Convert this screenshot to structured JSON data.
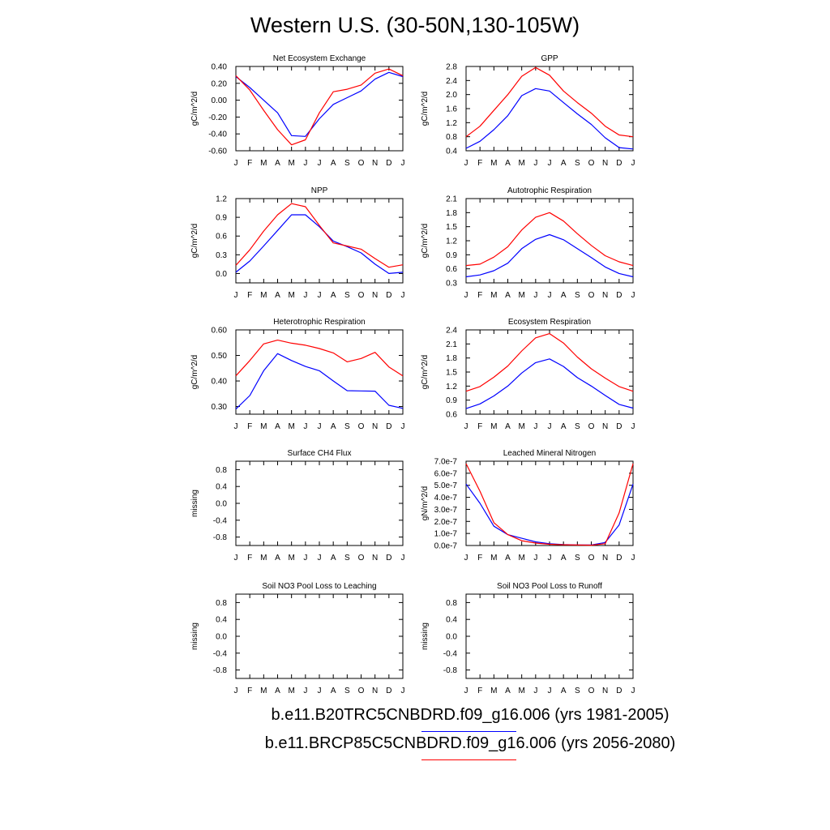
{
  "title": "Western U.S. (30-50N,130-105W)",
  "colors": {
    "series_1": "#0000ff",
    "series_2": "#ff0000",
    "axis": "#000000"
  },
  "legend": [
    {
      "label": "b.e11.B20TRC5CNBDRD.f09_g16.006 (yrs 1981-2005)",
      "color": "#0000ff"
    },
    {
      "label": "b.e11.BRCP85C5CNBDRD.f09_g16.006 (yrs 2056-2080)",
      "color": "#ff0000"
    }
  ],
  "chart_data": [
    {
      "type": "line",
      "title": "Net Ecosystem Exchange",
      "ylabel": "gC/m^2/d",
      "categories": [
        "J",
        "F",
        "M",
        "A",
        "M",
        "J",
        "J",
        "A",
        "S",
        "O",
        "N",
        "D",
        "J"
      ],
      "ylim": [
        -0.6,
        0.4
      ],
      "yticks": [
        "0.40",
        "0.20",
        "0.00",
        "-0.20",
        "-0.40",
        "-0.60"
      ],
      "ytick_values": [
        0.4,
        0.2,
        0.0,
        -0.2,
        -0.4,
        -0.6
      ],
      "series": [
        {
          "color": "#0000ff",
          "values": [
            0.28,
            0.15,
            0.0,
            -0.15,
            -0.42,
            -0.43,
            -0.22,
            -0.05,
            0.03,
            0.11,
            0.25,
            0.33,
            0.28
          ]
        },
        {
          "color": "#ff0000",
          "values": [
            0.29,
            0.12,
            -0.12,
            -0.35,
            -0.53,
            -0.47,
            -0.15,
            0.1,
            0.13,
            0.18,
            0.32,
            0.37,
            0.29
          ]
        }
      ]
    },
    {
      "type": "line",
      "title": "GPP",
      "ylabel": "gC/m^2/d",
      "categories": [
        "J",
        "F",
        "M",
        "A",
        "M",
        "J",
        "J",
        "A",
        "S",
        "O",
        "N",
        "D",
        "J"
      ],
      "ylim": [
        0.4,
        2.8
      ],
      "yticks": [
        "2.8",
        "2.4",
        "2.0",
        "1.6",
        "1.2",
        "0.8",
        "0.4"
      ],
      "ytick_values": [
        2.8,
        2.4,
        2.0,
        1.6,
        1.2,
        0.8,
        0.4
      ],
      "series": [
        {
          "color": "#0000ff",
          "values": [
            0.47,
            0.67,
            1.0,
            1.4,
            1.97,
            2.17,
            2.1,
            1.77,
            1.45,
            1.15,
            0.77,
            0.49,
            0.45
          ]
        },
        {
          "color": "#ff0000",
          "values": [
            0.8,
            1.1,
            1.55,
            2.0,
            2.52,
            2.77,
            2.55,
            2.1,
            1.77,
            1.47,
            1.1,
            0.85,
            0.8
          ]
        }
      ]
    },
    {
      "type": "line",
      "title": "NPP",
      "ylabel": "gC/m^2/d",
      "categories": [
        "J",
        "F",
        "M",
        "A",
        "M",
        "J",
        "J",
        "A",
        "S",
        "O",
        "N",
        "D",
        "J"
      ],
      "ylim": [
        -0.15,
        1.2
      ],
      "yticks": [
        "1.2",
        "0.9",
        "0.6",
        "0.3",
        "0.0"
      ],
      "ytick_values": [
        1.2,
        0.9,
        0.6,
        0.3,
        0.0
      ],
      "series": [
        {
          "color": "#0000ff",
          "values": [
            0.02,
            0.2,
            0.44,
            0.69,
            0.94,
            0.94,
            0.75,
            0.52,
            0.43,
            0.33,
            0.15,
            0.0,
            0.02
          ]
        },
        {
          "color": "#ff0000",
          "values": [
            0.13,
            0.38,
            0.68,
            0.94,
            1.12,
            1.07,
            0.77,
            0.49,
            0.44,
            0.39,
            0.24,
            0.1,
            0.14
          ]
        }
      ]
    },
    {
      "type": "line",
      "title": "Autotrophic Respiration",
      "ylabel": "gC/m^2/d",
      "categories": [
        "J",
        "F",
        "M",
        "A",
        "M",
        "J",
        "J",
        "A",
        "S",
        "O",
        "N",
        "D",
        "J"
      ],
      "ylim": [
        0.3,
        2.1
      ],
      "yticks": [
        "2.1",
        "1.8",
        "1.5",
        "1.2",
        "0.9",
        "0.6",
        "0.3"
      ],
      "ytick_values": [
        2.1,
        1.8,
        1.5,
        1.2,
        0.9,
        0.6,
        0.3
      ],
      "series": [
        {
          "color": "#0000ff",
          "values": [
            0.43,
            0.47,
            0.56,
            0.72,
            1.03,
            1.23,
            1.33,
            1.22,
            1.03,
            0.84,
            0.64,
            0.5,
            0.43
          ]
        },
        {
          "color": "#ff0000",
          "values": [
            0.67,
            0.7,
            0.85,
            1.07,
            1.43,
            1.7,
            1.8,
            1.62,
            1.35,
            1.1,
            0.88,
            0.75,
            0.67
          ]
        }
      ]
    },
    {
      "type": "line",
      "title": "Heterotrophic Respiration",
      "ylabel": "gC/m^2/d",
      "categories": [
        "J",
        "F",
        "M",
        "A",
        "M",
        "J",
        "J",
        "A",
        "S",
        "O",
        "N",
        "D",
        "J"
      ],
      "ylim": [
        0.27,
        0.6
      ],
      "yticks": [
        "0.60",
        "0.50",
        "0.40",
        "0.30"
      ],
      "ytick_values": [
        0.6,
        0.5,
        0.4,
        0.3
      ],
      "series": [
        {
          "color": "#0000ff",
          "values": [
            0.29,
            0.343,
            0.44,
            0.507,
            0.48,
            0.457,
            0.44,
            0.4,
            0.362,
            0.361,
            0.36,
            0.305,
            0.293
          ]
        },
        {
          "color": "#ff0000",
          "values": [
            0.42,
            0.48,
            0.545,
            0.56,
            0.548,
            0.54,
            0.527,
            0.51,
            0.475,
            0.488,
            0.512,
            0.455,
            0.42
          ]
        }
      ]
    },
    {
      "type": "line",
      "title": "Ecosystem Respiration",
      "ylabel": "gC/m^2/d",
      "categories": [
        "J",
        "F",
        "M",
        "A",
        "M",
        "J",
        "J",
        "A",
        "S",
        "O",
        "N",
        "D",
        "J"
      ],
      "ylim": [
        0.6,
        2.4
      ],
      "yticks": [
        "2.4",
        "2.1",
        "1.8",
        "1.5",
        "1.2",
        "0.9",
        "0.6"
      ],
      "ytick_values": [
        2.4,
        2.1,
        1.8,
        1.5,
        1.2,
        0.9,
        0.6
      ],
      "series": [
        {
          "color": "#0000ff",
          "values": [
            0.72,
            0.82,
            0.99,
            1.2,
            1.48,
            1.7,
            1.78,
            1.62,
            1.38,
            1.2,
            1.0,
            0.81,
            0.73
          ]
        },
        {
          "color": "#ff0000",
          "values": [
            1.09,
            1.19,
            1.39,
            1.63,
            1.95,
            2.23,
            2.32,
            2.12,
            1.82,
            1.57,
            1.37,
            1.19,
            1.09
          ]
        }
      ]
    },
    {
      "type": "line",
      "title": "Surface CH4 Flux",
      "ylabel": "missing",
      "categories": [
        "J",
        "F",
        "M",
        "A",
        "M",
        "J",
        "J",
        "A",
        "S",
        "O",
        "N",
        "D",
        "J"
      ],
      "ylim": [
        -1.0,
        1.0
      ],
      "yticks": [
        "0.8",
        "0.4",
        "0.0",
        "-0.4",
        "-0.8"
      ],
      "ytick_values": [
        0.8,
        0.4,
        0.0,
        -0.4,
        -0.8
      ],
      "series": []
    },
    {
      "type": "line",
      "title": "Leached Mineral Nitrogen",
      "ylabel": "gN/m^2/d",
      "categories": [
        "J",
        "F",
        "M",
        "A",
        "M",
        "J",
        "J",
        "A",
        "S",
        "O",
        "N",
        "D",
        "J"
      ],
      "ylim": [
        0,
        7e-07
      ],
      "yticks": [
        "7.0e-7",
        "6.0e-7",
        "5.0e-7",
        "4.0e-7",
        "3.0e-7",
        "2.0e-7",
        "1.0e-7",
        "0.0e-7"
      ],
      "ytick_values": [
        7e-07,
        6e-07,
        5e-07,
        4e-07,
        3e-07,
        2e-07,
        1e-07,
        0
      ],
      "series": [
        {
          "color": "#0000ff",
          "values": [
            5.1e-07,
            3.5e-07,
            1.6e-07,
            9e-08,
            6e-08,
            3e-08,
            1.5e-08,
            8e-09,
            5e-09,
            4e-09,
            2.5e-08,
            1.7e-07,
            5.1e-07
          ]
        },
        {
          "color": "#ff0000",
          "values": [
            6.8e-07,
            4.5e-07,
            1.9e-07,
            9e-08,
            4e-08,
            2e-08,
            1e-08,
            6e-09,
            4e-09,
            3e-09,
            1.5e-08,
            2.7e-07,
            6.8e-07
          ]
        }
      ]
    },
    {
      "type": "line",
      "title": "Soil NO3 Pool Loss to Leaching",
      "ylabel": "missing",
      "categories": [
        "J",
        "F",
        "M",
        "A",
        "M",
        "J",
        "J",
        "A",
        "S",
        "O",
        "N",
        "D",
        "J"
      ],
      "ylim": [
        -1.0,
        1.0
      ],
      "yticks": [
        "0.8",
        "0.4",
        "0.0",
        "-0.4",
        "-0.8"
      ],
      "ytick_values": [
        0.8,
        0.4,
        0.0,
        -0.4,
        -0.8
      ],
      "series": []
    },
    {
      "type": "line",
      "title": "Soil NO3 Pool Loss to Runoff",
      "ylabel": "missing",
      "categories": [
        "J",
        "F",
        "M",
        "A",
        "M",
        "J",
        "J",
        "A",
        "S",
        "O",
        "N",
        "D",
        "J"
      ],
      "ylim": [
        -1.0,
        1.0
      ],
      "yticks": [
        "0.8",
        "0.4",
        "0.0",
        "-0.4",
        "-0.8"
      ],
      "ytick_values": [
        0.8,
        0.4,
        0.0,
        -0.4,
        -0.8
      ],
      "series": []
    }
  ]
}
